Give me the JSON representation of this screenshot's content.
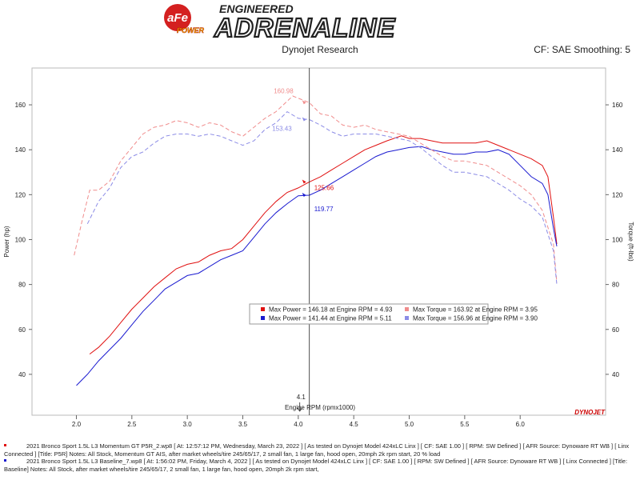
{
  "header": {
    "brand": "aFe",
    "brand_sub": "POWER",
    "tagline_top": "ENGINEERED",
    "tagline": "ADRENALINE"
  },
  "chart_data": {
    "type": "line",
    "title": "Dynojet Research",
    "subtitle": "CF: SAE Smoothing: 5",
    "xlabel": "Engine RPM (rpmx1000)",
    "ylabel": "Power (hp)",
    "y2label": "Torque (ft-lbs)",
    "xlim": [
      1.6,
      6.77
    ],
    "ylim": [
      21.8,
      176.4
    ],
    "y2lim": [
      21.8,
      176.4
    ],
    "xticks": [
      {
        "value": 2,
        "label": "2.0"
      },
      2.5,
      {
        "value": 3,
        "label": "3.0"
      },
      3.5,
      {
        "value": 4,
        "label": "4.0"
      },
      4.5,
      {
        "value": 5,
        "label": "5.0"
      },
      5.5,
      {
        "value": 6,
        "label": "6.0"
      }
    ],
    "yticks": [
      40,
      60,
      80,
      100,
      120,
      140,
      160
    ],
    "y2ticks": [
      40,
      60,
      80,
      100,
      120,
      140,
      160
    ],
    "grid": false,
    "series": [
      {
        "name": "Max Power = 146.18 at Engine RPM = 4.93",
        "color": "#e01010",
        "dash": false,
        "axis": "y",
        "x": [
          2.12,
          2.2,
          2.3,
          2.4,
          2.5,
          2.6,
          2.7,
          2.8,
          2.9,
          3.0,
          3.1,
          3.2,
          3.3,
          3.4,
          3.5,
          3.6,
          3.7,
          3.8,
          3.9,
          4.0,
          4.1,
          4.2,
          4.3,
          4.4,
          4.5,
          4.6,
          4.7,
          4.8,
          4.93,
          5.0,
          5.1,
          5.2,
          5.3,
          5.4,
          5.5,
          5.6,
          5.7,
          5.8,
          5.9,
          6.0,
          6.1,
          6.2,
          6.25,
          6.3,
          6.33
        ],
        "values": [
          49,
          52,
          57,
          63,
          69,
          74,
          79,
          83,
          87,
          89,
          90,
          93,
          95,
          96,
          100,
          106,
          112,
          117,
          121,
          123,
          125.66,
          128,
          131,
          134,
          137,
          140,
          142,
          144,
          146.18,
          145,
          145,
          144,
          143,
          143,
          143,
          143,
          144,
          142,
          140,
          138,
          136,
          133,
          128,
          110,
          98
        ]
      },
      {
        "name": "Max Power = 141.44 at Engine RPM = 5.11",
        "color": "#1a1ad0",
        "dash": false,
        "axis": "y",
        "x": [
          2.0,
          2.1,
          2.2,
          2.3,
          2.4,
          2.5,
          2.6,
          2.7,
          2.8,
          2.9,
          3.0,
          3.1,
          3.2,
          3.3,
          3.4,
          3.5,
          3.6,
          3.7,
          3.8,
          3.9,
          4.0,
          4.1,
          4.2,
          4.3,
          4.4,
          4.5,
          4.6,
          4.7,
          4.8,
          4.9,
          5.0,
          5.11,
          5.2,
          5.3,
          5.4,
          5.5,
          5.6,
          5.7,
          5.8,
          5.9,
          6.0,
          6.1,
          6.2,
          6.25,
          6.3,
          6.33
        ],
        "values": [
          35,
          40,
          46,
          51,
          56,
          62,
          68,
          73,
          78,
          81,
          84,
          85,
          88,
          91,
          93,
          95,
          101,
          107,
          112,
          116,
          119.5,
          119.77,
          122,
          125,
          128,
          131,
          134,
          137,
          139,
          140,
          141,
          141.44,
          140,
          139,
          138,
          138,
          139,
          139,
          140,
          138,
          133,
          128,
          125,
          120,
          105,
          97
        ]
      },
      {
        "name": "Max Torque = 163.92 at Engine RPM = 3.95",
        "color": "#f08c8c",
        "dash": true,
        "axis": "y2",
        "x": [
          1.98,
          2.05,
          2.12,
          2.2,
          2.3,
          2.4,
          2.5,
          2.6,
          2.7,
          2.8,
          2.9,
          3.0,
          3.1,
          3.2,
          3.3,
          3.4,
          3.5,
          3.6,
          3.7,
          3.8,
          3.95,
          4.1,
          4.2,
          4.3,
          4.4,
          4.5,
          4.6,
          4.7,
          4.8,
          4.9,
          5.0,
          5.1,
          5.2,
          5.3,
          5.4,
          5.5,
          5.6,
          5.7,
          5.8,
          5.9,
          6.0,
          6.1,
          6.2,
          6.3,
          6.33
        ],
        "values": [
          93,
          108,
          122,
          122,
          126,
          135,
          141,
          147,
          150,
          151,
          153,
          152,
          150,
          152,
          151,
          148,
          146,
          150,
          154,
          157,
          163.92,
          160.98,
          156,
          155,
          151,
          150,
          151,
          149,
          148,
          147,
          146,
          143,
          140,
          137,
          135,
          135,
          134,
          133,
          130,
          127,
          124,
          120,
          113,
          98,
          81
        ]
      },
      {
        "name": "Max Torque = 156.96 at Engine RPM = 3.90",
        "color": "#8c8ce6",
        "dash": true,
        "axis": "y2",
        "x": [
          2.1,
          2.2,
          2.3,
          2.4,
          2.5,
          2.6,
          2.7,
          2.8,
          2.9,
          3.0,
          3.1,
          3.2,
          3.3,
          3.4,
          3.5,
          3.6,
          3.7,
          3.8,
          3.9,
          4.0,
          4.1,
          4.2,
          4.3,
          4.4,
          4.5,
          4.6,
          4.7,
          4.8,
          4.9,
          5.0,
          5.1,
          5.2,
          5.3,
          5.4,
          5.5,
          5.6,
          5.7,
          5.8,
          5.9,
          6.0,
          6.1,
          6.2,
          6.3,
          6.33
        ],
        "values": [
          107,
          117,
          123,
          132,
          137,
          139,
          143,
          146,
          147,
          147,
          146,
          147,
          146,
          144,
          142,
          144,
          149,
          152,
          156.96,
          154,
          153.43,
          151,
          148,
          146,
          147,
          147,
          147,
          146,
          145,
          144,
          141,
          137,
          133,
          130,
          130,
          129,
          128,
          125,
          122,
          118,
          115,
          110,
          95,
          80
        ]
      }
    ],
    "cursor": {
      "x": 4.1,
      "values": [
        125.66,
        119.77,
        160.98,
        153.43
      ]
    },
    "brand_mark": "DYNOJET",
    "run_notes": [
      "2021 Bronco Sport 1.5L L3 Momentum GT P5R_2.wp8 [ At: 12:57:12 PM, Wednesday, March 23, 2022 ] [ As tested on Dynojet Model 424xLC Linx ] [ CF: SAE 1.00 ] [ RPM: SW Defined ] [ AFR Source: Dynoware RT WB ] [ Linx Connected ] [Title: P5R]  Notes: All Stock, Momentum GT AIS, after market wheels/tire 245/65/17, 2 small fan, 1 large fan, hood open,  20mph 2k rpm start, 20 % load",
      "2021 Bronco Sport 1.5L L3 Baseline_7.wp8 [ At: 1:56:02 PM, Friday, March 4, 2022 ] [ As tested on Dynojet Model 424xLC Linx ] [ CF: SAE 1.00 ] [ RPM: SW Defined ] [ AFR Source: Dynoware RT WB ] [ Linx Connected ] [Title: Baseline]  Notes: All Stock, after market wheels/tire 245/65/17, 2 small fan, 1 large fan, hood open,  20mph 2k rpm start,"
    ]
  }
}
